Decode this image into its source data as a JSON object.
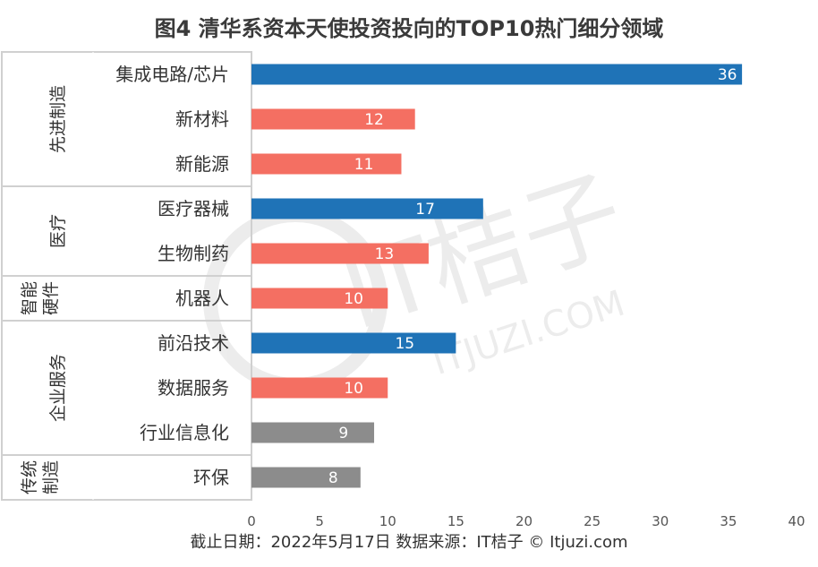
{
  "chart_data": {
    "type": "bar",
    "orientation": "horizontal",
    "title": "图4  清华系资本天使投资投向的TOP10热门细分领域",
    "categories": [
      "集成电路/芯片",
      "新材料",
      "新能源",
      "医疗器械",
      "生物制药",
      "机器人",
      "前沿技术",
      "数据服务",
      "行业信息化",
      "环保"
    ],
    "values": [
      36,
      12,
      11,
      17,
      13,
      10,
      15,
      10,
      9,
      8
    ],
    "bar_colors": [
      "#1f73b7",
      "#f46f62",
      "#f46f62",
      "#1f73b7",
      "#f46f62",
      "#f46f62",
      "#1f73b7",
      "#f46f62",
      "#8c8c8c",
      "#8c8c8c"
    ],
    "groups": [
      {
        "label": "先进制造",
        "lines": [
          "先进制造"
        ],
        "span": [
          0,
          2
        ]
      },
      {
        "label": "医疗",
        "lines": [
          "医疗"
        ],
        "span": [
          3,
          4
        ]
      },
      {
        "label": "智能硬件",
        "lines": [
          "智能",
          "硬件"
        ],
        "span": [
          5,
          5
        ]
      },
      {
        "label": "企业服务",
        "lines": [
          "企业服务"
        ],
        "span": [
          6,
          8
        ]
      },
      {
        "label": "传统制造",
        "lines": [
          "传统",
          "制造"
        ],
        "span": [
          9,
          9
        ]
      }
    ],
    "xlim": [
      0,
      40
    ],
    "x_ticks": [
      0,
      5,
      10,
      15,
      20,
      25,
      30,
      35,
      40
    ],
    "grid": false,
    "legend": "none"
  },
  "footer": "截止日期：2022年5月17日    数据来源：IT桔子 © Itjuzi.com",
  "watermark": {
    "logo_text": "IT桔子",
    "url_text": "ITJUZI.COM"
  }
}
